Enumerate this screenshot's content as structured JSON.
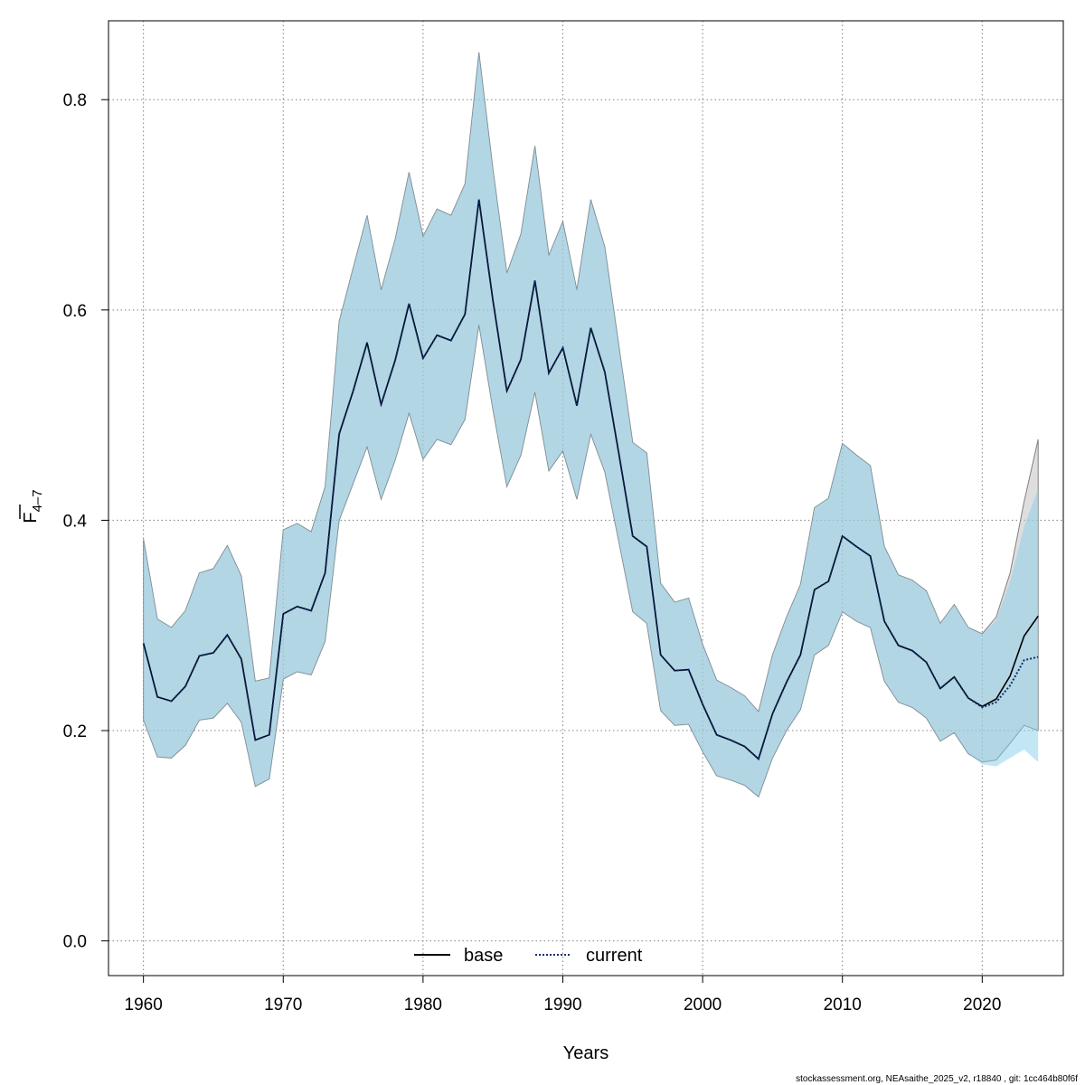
{
  "chart_data": {
    "type": "line",
    "xlabel": "Years",
    "ylabel": "F̄ 4-7",
    "ylabel_main": "F",
    "ylabel_sub": "4–7",
    "xlim": [
      1957.5,
      2025.8
    ],
    "ylim": [
      -0.033,
      0.875
    ],
    "x_ticks": [
      1960,
      1970,
      1980,
      1990,
      2000,
      2010,
      2020
    ],
    "y_ticks": [
      0.0,
      0.2,
      0.4,
      0.6,
      0.8
    ],
    "y_tick_labels": [
      "0.0",
      "0.2",
      "0.4",
      "0.6",
      "0.8"
    ],
    "grid": true,
    "legend_position": "bottom-center",
    "x": [
      1960,
      1961,
      1962,
      1963,
      1964,
      1965,
      1966,
      1967,
      1968,
      1969,
      1970,
      1971,
      1972,
      1973,
      1974,
      1975,
      1976,
      1977,
      1978,
      1979,
      1980,
      1981,
      1982,
      1983,
      1984,
      1985,
      1986,
      1987,
      1988,
      1989,
      1990,
      1991,
      1992,
      1993,
      1994,
      1995,
      1996,
      1997,
      1998,
      1999,
      2000,
      2001,
      2002,
      2003,
      2004,
      2005,
      2006,
      2007,
      2008,
      2009,
      2010,
      2011,
      2012,
      2013,
      2014,
      2015,
      2016,
      2017,
      2018,
      2019,
      2020,
      2021,
      2022,
      2023,
      2024
    ],
    "series": [
      {
        "name": "base",
        "color": "#000000",
        "line_style": "solid",
        "band_color": "#bdbdbd",
        "values": [
          0.283,
          0.232,
          0.228,
          0.242,
          0.271,
          0.274,
          0.291,
          0.268,
          0.191,
          0.196,
          0.311,
          0.318,
          0.314,
          0.35,
          0.482,
          0.523,
          0.569,
          0.51,
          0.552,
          0.606,
          0.554,
          0.576,
          0.571,
          0.596,
          0.705,
          0.609,
          0.523,
          0.553,
          0.628,
          0.54,
          0.564,
          0.509,
          0.583,
          0.541,
          0.464,
          0.385,
          0.375,
          0.272,
          0.257,
          0.258,
          0.225,
          0.196,
          0.191,
          0.185,
          0.173,
          0.216,
          0.246,
          0.272,
          0.334,
          0.342,
          0.385,
          0.375,
          0.366,
          0.304,
          0.281,
          0.276,
          0.265,
          0.24,
          0.251,
          0.231,
          0.223,
          0.23,
          0.252,
          0.29,
          0.309
        ],
        "lower": [
          0.21,
          0.175,
          0.174,
          0.186,
          0.21,
          0.212,
          0.226,
          0.208,
          0.147,
          0.154,
          0.249,
          0.256,
          0.253,
          0.285,
          0.4,
          0.435,
          0.47,
          0.42,
          0.457,
          0.502,
          0.458,
          0.477,
          0.472,
          0.496,
          0.586,
          0.505,
          0.432,
          0.462,
          0.522,
          0.447,
          0.466,
          0.42,
          0.482,
          0.446,
          0.38,
          0.313,
          0.302,
          0.219,
          0.205,
          0.206,
          0.18,
          0.157,
          0.153,
          0.148,
          0.137,
          0.174,
          0.2,
          0.22,
          0.272,
          0.281,
          0.313,
          0.304,
          0.298,
          0.247,
          0.227,
          0.222,
          0.212,
          0.19,
          0.198,
          0.178,
          0.17,
          0.172,
          0.188,
          0.205,
          0.2
        ],
        "upper": [
          0.382,
          0.306,
          0.298,
          0.314,
          0.35,
          0.354,
          0.376,
          0.347,
          0.247,
          0.25,
          0.391,
          0.397,
          0.389,
          0.432,
          0.589,
          0.64,
          0.69,
          0.619,
          0.667,
          0.731,
          0.67,
          0.696,
          0.69,
          0.72,
          0.845,
          0.734,
          0.635,
          0.672,
          0.756,
          0.652,
          0.684,
          0.619,
          0.705,
          0.66,
          0.567,
          0.474,
          0.464,
          0.34,
          0.322,
          0.326,
          0.282,
          0.248,
          0.241,
          0.233,
          0.218,
          0.272,
          0.308,
          0.339,
          0.412,
          0.421,
          0.473,
          0.462,
          0.452,
          0.375,
          0.348,
          0.343,
          0.333,
          0.302,
          0.32,
          0.298,
          0.292,
          0.308,
          0.35,
          0.418,
          0.477
        ]
      },
      {
        "name": "current",
        "color": "#0d2f6e",
        "line_style": "dotted",
        "band_color": "#87ceeb",
        "values": [
          0.283,
          0.232,
          0.228,
          0.242,
          0.271,
          0.274,
          0.291,
          0.268,
          0.191,
          0.196,
          0.311,
          0.318,
          0.314,
          0.35,
          0.482,
          0.523,
          0.569,
          0.51,
          0.552,
          0.606,
          0.554,
          0.576,
          0.571,
          0.596,
          0.705,
          0.609,
          0.523,
          0.553,
          0.628,
          0.54,
          0.564,
          0.509,
          0.583,
          0.541,
          0.464,
          0.385,
          0.375,
          0.272,
          0.257,
          0.258,
          0.225,
          0.196,
          0.191,
          0.185,
          0.173,
          0.216,
          0.246,
          0.272,
          0.334,
          0.342,
          0.385,
          0.375,
          0.366,
          0.304,
          0.281,
          0.276,
          0.265,
          0.24,
          0.251,
          0.231,
          0.222,
          0.227,
          0.243,
          0.267,
          0.27
        ],
        "lower": [
          0.21,
          0.175,
          0.174,
          0.186,
          0.21,
          0.212,
          0.226,
          0.208,
          0.147,
          0.154,
          0.249,
          0.256,
          0.253,
          0.285,
          0.4,
          0.435,
          0.47,
          0.42,
          0.457,
          0.502,
          0.458,
          0.477,
          0.472,
          0.496,
          0.586,
          0.505,
          0.432,
          0.462,
          0.522,
          0.447,
          0.466,
          0.42,
          0.482,
          0.446,
          0.38,
          0.313,
          0.302,
          0.219,
          0.205,
          0.206,
          0.18,
          0.157,
          0.153,
          0.148,
          0.137,
          0.174,
          0.2,
          0.22,
          0.272,
          0.281,
          0.313,
          0.304,
          0.298,
          0.247,
          0.227,
          0.222,
          0.212,
          0.19,
          0.198,
          0.178,
          0.168,
          0.166,
          0.174,
          0.182,
          0.17
        ],
        "upper": [
          0.382,
          0.306,
          0.298,
          0.314,
          0.35,
          0.354,
          0.376,
          0.347,
          0.247,
          0.25,
          0.391,
          0.397,
          0.389,
          0.432,
          0.589,
          0.64,
          0.69,
          0.619,
          0.667,
          0.731,
          0.67,
          0.696,
          0.69,
          0.72,
          0.845,
          0.734,
          0.635,
          0.672,
          0.756,
          0.652,
          0.684,
          0.619,
          0.705,
          0.66,
          0.567,
          0.474,
          0.464,
          0.34,
          0.322,
          0.326,
          0.282,
          0.248,
          0.241,
          0.233,
          0.218,
          0.272,
          0.308,
          0.339,
          0.412,
          0.421,
          0.473,
          0.462,
          0.452,
          0.375,
          0.348,
          0.343,
          0.333,
          0.302,
          0.32,
          0.298,
          0.292,
          0.305,
          0.342,
          0.394,
          0.43
        ]
      }
    ],
    "footer": "stockassessment.org, NEAsaithe_2025_v2, r18840 , git: 1cc464b80f6f"
  }
}
